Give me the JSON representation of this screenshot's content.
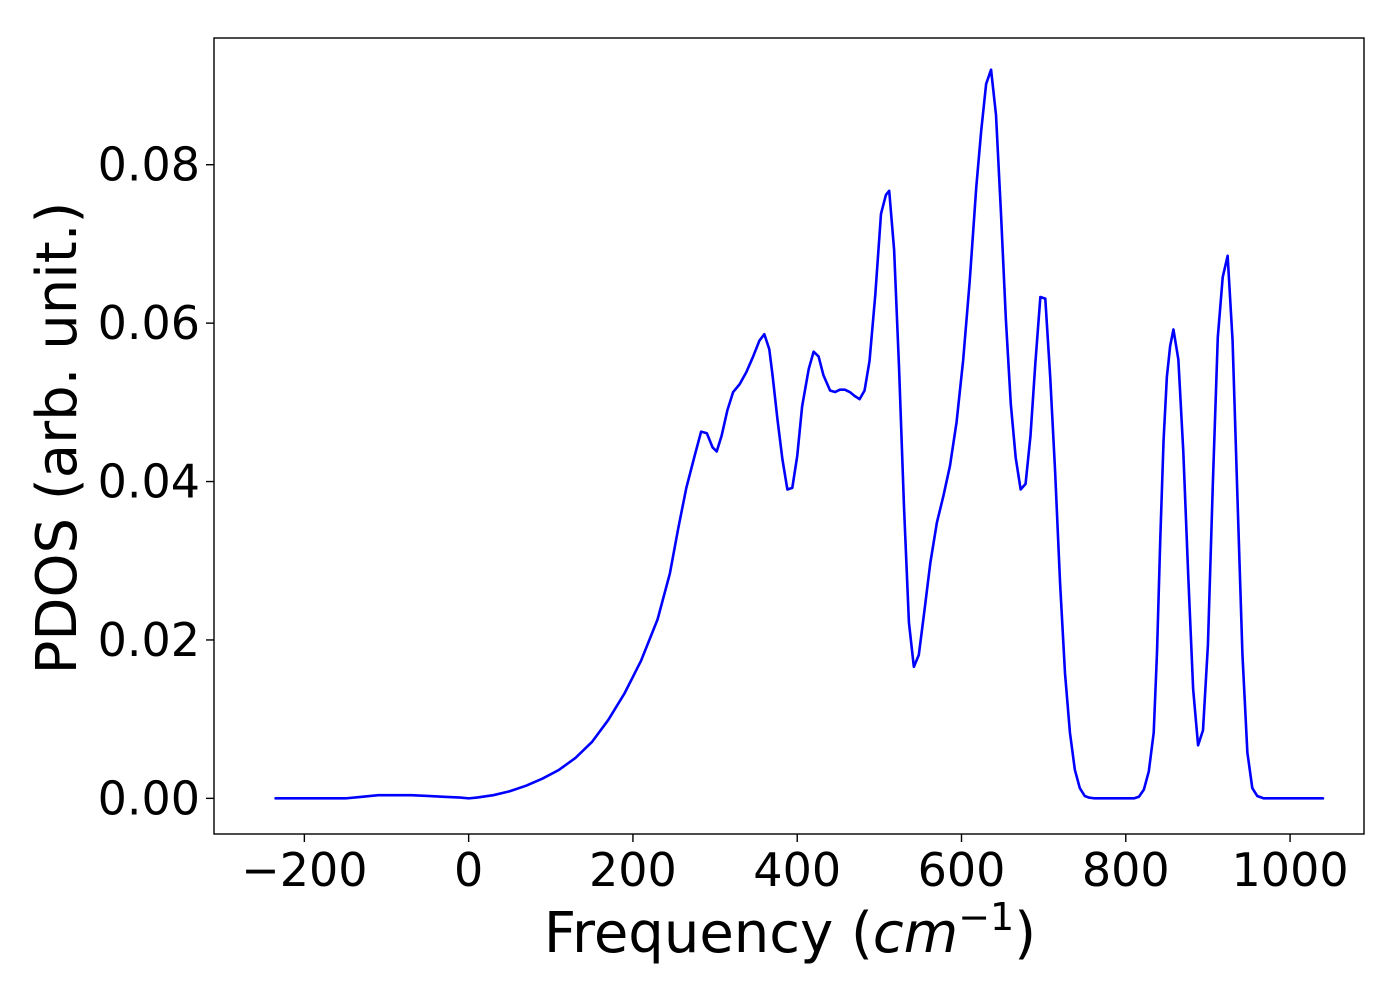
{
  "chart_data": {
    "type": "line",
    "title": "",
    "xlabel": {
      "prefix": "Frequency (",
      "unit": "cm",
      "exponent": "−1",
      "suffix": ")"
    },
    "ylabel": "PDOS (arb. unit.)",
    "xlim": [
      -310,
      1090
    ],
    "ylim": [
      -0.0045,
      0.096
    ],
    "xticks": [
      -200,
      0,
      200,
      400,
      600,
      800,
      1000
    ],
    "xtick_labels": [
      "−200",
      "0",
      "200",
      "400",
      "600",
      "800",
      "1000"
    ],
    "yticks": [
      0,
      0.02,
      0.04,
      0.06,
      0.08
    ],
    "ytick_labels": [
      "0.00",
      "0.02",
      "0.04",
      "0.06",
      "0.08"
    ],
    "grid": false,
    "legend": null,
    "series": [
      {
        "color": "#0000ff",
        "x": [
          -235,
          -200,
          -150,
          -130,
          -110,
          -90,
          -70,
          -50,
          -30,
          -10,
          0,
          10,
          30,
          50,
          70,
          90,
          110,
          130,
          150,
          170,
          190,
          210,
          230,
          245,
          255,
          265,
          275,
          283,
          290,
          297,
          302,
          308,
          315,
          322,
          330,
          338,
          346,
          354,
          360,
          366,
          370,
          376,
          382,
          388,
          394,
          400,
          406,
          414,
          420,
          426,
          432,
          440,
          446,
          452,
          458,
          464,
          470,
          476,
          482,
          488,
          495,
          502,
          508,
          512,
          518,
          524,
          530,
          536,
          542,
          548,
          555,
          562,
          570,
          578,
          586,
          594,
          602,
          610,
          618,
          624,
          630,
          636,
          642,
          648,
          654,
          660,
          666,
          672,
          678,
          684,
          690,
          696,
          702,
          708,
          714,
          720,
          726,
          732,
          738,
          744,
          750,
          755,
          762,
          770,
          780,
          790,
          800,
          810,
          816,
          822,
          828,
          834,
          838,
          842,
          846,
          850,
          854,
          858,
          864,
          870,
          876,
          882,
          888,
          894,
          900,
          906,
          912,
          918,
          924,
          930,
          936,
          942,
          948,
          954,
          960,
          968,
          980,
          1000,
          1040
        ],
        "y": [
          0.0,
          0.0,
          0.0,
          0.0002,
          0.0004,
          0.0004,
          0.0004,
          0.0003,
          0.0002,
          0.0001,
          0.0,
          0.0001,
          0.0004,
          0.0009,
          0.0016,
          0.0025,
          0.0036,
          0.0051,
          0.0071,
          0.0099,
          0.0133,
          0.0174,
          0.0226,
          0.0284,
          0.034,
          0.0392,
          0.0432,
          0.0463,
          0.0461,
          0.0443,
          0.0438,
          0.0458,
          0.049,
          0.0513,
          0.0523,
          0.0538,
          0.0557,
          0.0578,
          0.0586,
          0.0567,
          0.0534,
          0.0478,
          0.0428,
          0.039,
          0.0392,
          0.0432,
          0.0495,
          0.0542,
          0.0564,
          0.0558,
          0.0534,
          0.0515,
          0.0513,
          0.0516,
          0.0516,
          0.0513,
          0.0508,
          0.0504,
          0.0515,
          0.0552,
          0.0635,
          0.0738,
          0.0762,
          0.0767,
          0.0692,
          0.0543,
          0.0368,
          0.0222,
          0.0166,
          0.0181,
          0.0238,
          0.0297,
          0.0348,
          0.0382,
          0.042,
          0.0475,
          0.0553,
          0.0653,
          0.0772,
          0.0843,
          0.0902,
          0.092,
          0.0863,
          0.074,
          0.0605,
          0.0498,
          0.043,
          0.039,
          0.0397,
          0.0458,
          0.0551,
          0.0633,
          0.0631,
          0.0532,
          0.0412,
          0.0272,
          0.0158,
          0.0083,
          0.0036,
          0.0013,
          0.0003,
          0.0001,
          0.0,
          0.0,
          0.0,
          0.0,
          0.0,
          0.0,
          0.0002,
          0.0011,
          0.0034,
          0.0083,
          0.0184,
          0.0328,
          0.0452,
          0.0532,
          0.0571,
          0.0592,
          0.0554,
          0.0438,
          0.0282,
          0.0138,
          0.0067,
          0.0086,
          0.0194,
          0.0398,
          0.0582,
          0.0658,
          0.0685,
          0.0578,
          0.0378,
          0.0182,
          0.0058,
          0.0013,
          0.0003,
          0.0,
          0.0,
          0.0,
          0.0
        ]
      }
    ]
  }
}
